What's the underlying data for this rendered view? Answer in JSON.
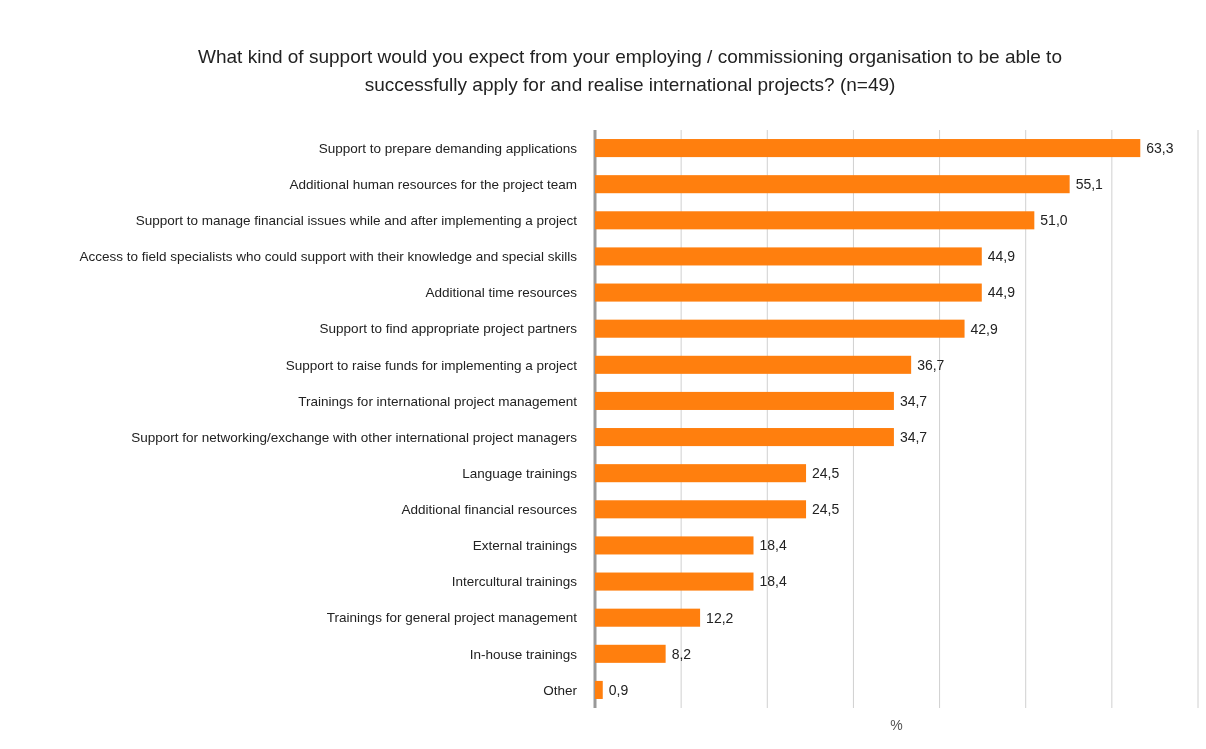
{
  "chart_data": {
    "type": "bar",
    "orientation": "horizontal",
    "title": "What kind of support would you expect from your employing / commissioning organisation to be able to successfully apply for and realise international projects? (n=49)",
    "xlabel": "%",
    "categories": [
      "Support to prepare demanding applications",
      "Additional human resources for the project team",
      "Support to manage financial issues while and after implementing a project",
      "Access to field specialists who could support with their knowledge and special skills",
      "Additional time resources",
      "Support to find appropriate project partners",
      "Support to raise funds for implementing a project",
      "Trainings for international project management",
      "Support for networking/exchange with other international project managers",
      "Language trainings",
      "Additional financial resources",
      "External trainings",
      "Intercultural trainings",
      "Trainings for general project management",
      "In-house trainings",
      "Other"
    ],
    "values": [
      63.3,
      55.1,
      51.0,
      44.9,
      44.9,
      42.9,
      36.7,
      34.7,
      34.7,
      24.5,
      24.5,
      18.4,
      18.4,
      12.2,
      8.2,
      0.9
    ],
    "value_labels": [
      "63,3",
      "55,1",
      "51,0",
      "44,9",
      "44,9",
      "42,9",
      "36,7",
      "34,7",
      "34,7",
      "24,5",
      "24,5",
      "18,4",
      "18,4",
      "12,2",
      "8,2",
      "0,9"
    ],
    "color": "#ff7f0e",
    "xlim": [
      0,
      70
    ],
    "xticks": [
      {
        "value": 0,
        "label": null
      },
      {
        "value": 10,
        "label": null
      },
      {
        "value": 20,
        "label": null
      },
      {
        "value": 30,
        "label": null
      },
      {
        "value": 40,
        "label": null
      },
      {
        "value": 50,
        "label": null
      },
      {
        "value": 60,
        "label": null
      },
      {
        "value": 70,
        "label": null
      }
    ],
    "grid": "x",
    "tick_labels": "y"
  }
}
